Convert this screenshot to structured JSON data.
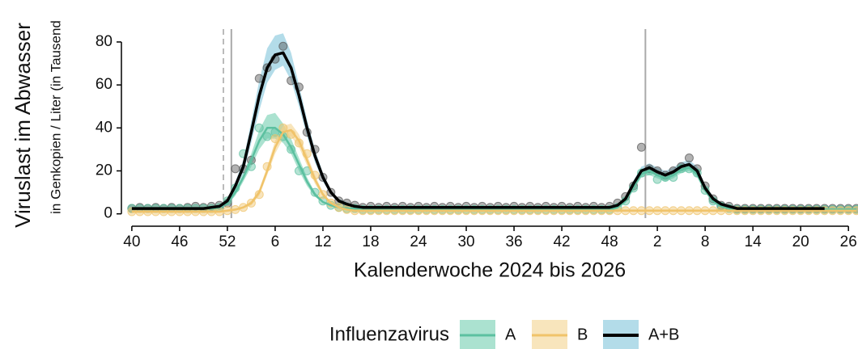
{
  "chart_data": {
    "type": "line",
    "y_label": "Viruslast im Abwasser",
    "y_sublabel": "in Genkopien / Liter (in Tausend",
    "x_label": "Kalenderwoche 2024 bis 2026",
    "legend_title": "Influenzavirus",
    "legend_position": "bottom",
    "xlim": [
      -0.8,
      91.2
    ],
    "ylim": [
      -5,
      86
    ],
    "yticks": [
      0,
      20,
      40,
      60,
      80
    ],
    "xticks": [
      {
        "value": 0,
        "label": "40"
      },
      {
        "value": 6,
        "label": "46"
      },
      {
        "value": 12,
        "label": "52"
      },
      {
        "value": 18,
        "label": "6"
      },
      {
        "value": 24,
        "label": "12"
      },
      {
        "value": 30,
        "label": "18"
      },
      {
        "value": 36,
        "label": "24"
      },
      {
        "value": 42,
        "label": "30"
      },
      {
        "value": 48,
        "label": "36"
      },
      {
        "value": 54,
        "label": "42"
      },
      {
        "value": 60,
        "label": "48"
      },
      {
        "value": 66,
        "label": "2"
      },
      {
        "value": 72,
        "label": "8"
      },
      {
        "value": 78,
        "label": "14"
      },
      {
        "value": 84,
        "label": "20"
      },
      {
        "value": 90,
        "label": "26"
      }
    ],
    "reference_lines": [
      12.5,
      64.5
    ],
    "dashed_line": 11.5,
    "x": [
      0,
      1,
      2,
      3,
      4,
      5,
      6,
      7,
      8,
      9,
      10,
      11,
      12,
      13,
      14,
      15,
      16,
      17,
      18,
      19,
      20,
      21,
      22,
      23,
      24,
      25,
      26,
      27,
      28,
      29,
      30,
      31,
      32,
      33,
      34,
      35,
      36,
      37,
      38,
      39,
      40,
      41,
      42,
      43,
      44,
      45,
      46,
      47,
      48,
      49,
      50,
      51,
      52,
      53,
      54,
      55,
      56,
      57,
      58,
      59,
      60,
      61,
      62,
      63,
      64,
      65,
      66,
      67,
      68,
      69,
      70,
      71,
      72,
      73,
      74,
      75,
      76,
      77,
      78,
      79,
      80,
      81,
      82,
      83,
      84,
      85,
      86,
      87,
      88,
      89,
      90,
      91
    ],
    "series": [
      {
        "name": "A",
        "color": "#5cc0a0",
        "band_color": "#8fd8c0",
        "point_color": "#5cc0a0",
        "values": [
          2.5,
          2.5,
          2.5,
          2.5,
          2.5,
          2.5,
          2.5,
          2.5,
          2.5,
          2.5,
          2.5,
          3,
          5,
          10,
          17,
          25,
          34,
          40,
          40,
          37,
          31,
          23,
          15,
          9,
          5.5,
          4,
          3,
          2.5,
          2.5,
          2,
          2,
          2,
          2,
          2,
          2,
          2,
          2,
          2,
          2,
          2,
          2,
          2,
          2,
          2,
          2,
          2,
          2,
          2,
          2,
          2,
          2,
          2,
          2,
          2,
          2,
          2,
          2,
          2,
          2,
          2,
          2,
          3,
          6,
          12.5,
          18.5,
          20,
          18,
          16.5,
          18,
          20.5,
          21.5,
          18.5,
          11,
          6,
          3.5,
          2.5,
          2,
          2,
          2,
          2,
          2,
          2,
          2,
          2,
          2,
          2,
          2,
          2,
          2,
          2,
          2,
          2
        ],
        "lower": [
          2,
          2,
          2,
          2,
          2,
          2,
          2,
          2,
          2,
          2,
          2,
          2.5,
          4,
          8.5,
          15,
          22,
          30,
          35,
          35,
          33,
          28,
          20,
          13,
          8,
          5,
          3.5,
          2.5,
          2,
          2,
          1.5,
          1.5,
          1.5,
          1.5,
          1.5,
          1.5,
          1.5,
          1.5,
          1.5,
          1.5,
          1.5,
          1.5,
          1.5,
          1.5,
          1.5,
          1.5,
          1.5,
          1.5,
          1.5,
          1.5,
          1.5,
          1.5,
          1.5,
          1.5,
          1.5,
          1.5,
          1.5,
          1.5,
          1.5,
          1.5,
          1.5,
          1.5,
          2.5,
          5,
          11,
          17,
          18,
          16.5,
          15,
          16.5,
          19,
          20,
          17,
          10,
          5,
          3,
          2,
          1.5,
          1.5,
          1.5,
          1.5,
          1.5,
          1.5,
          1.5,
          1.5,
          1.5,
          1.5,
          1.5,
          1.5,
          1.5,
          1.5,
          1.5,
          1.5
        ],
        "upper": [
          3,
          3,
          3,
          3,
          3,
          3,
          3,
          3,
          3,
          3,
          3,
          3.5,
          6,
          11.5,
          19,
          28,
          39,
          46,
          47,
          42,
          35,
          26,
          17,
          10,
          6,
          4.5,
          3.5,
          3,
          3,
          2.5,
          2.5,
          2.5,
          2.5,
          2.5,
          2.5,
          2.5,
          2.5,
          2.5,
          2.5,
          2.5,
          2.5,
          2.5,
          2.5,
          2.5,
          2.5,
          2.5,
          2.5,
          2.5,
          2.5,
          2.5,
          2.5,
          2.5,
          2.5,
          2.5,
          2.5,
          2.5,
          2.5,
          2.5,
          2.5,
          2.5,
          2.5,
          3.5,
          7,
          14,
          20,
          22,
          19.5,
          18,
          19.5,
          22,
          23,
          20,
          12,
          7,
          4,
          3,
          2.5,
          2.5,
          2.5,
          2.5,
          2.5,
          2.5,
          2.5,
          2.5,
          2.5,
          2.5,
          2.5,
          2.5,
          2.5,
          2.5,
          2.5,
          2.5
        ],
        "points": [
          2.5,
          2.5,
          2.5,
          2.5,
          2.5,
          2.5,
          2.5,
          2.5,
          2.5,
          2.5,
          2.5,
          3,
          6,
          12,
          28,
          22,
          40,
          36,
          38,
          36,
          30,
          20,
          20,
          10,
          6,
          4,
          3,
          2.5,
          2.5,
          2,
          2,
          2,
          2,
          2,
          2,
          2,
          2,
          2,
          2,
          2,
          2,
          2,
          2,
          2,
          2,
          2,
          2,
          2,
          2,
          2,
          2,
          2,
          2,
          2,
          2,
          2,
          2,
          2,
          2,
          2,
          2,
          3,
          6,
          12,
          19,
          20,
          16,
          17,
          17,
          21,
          21,
          19,
          11,
          6,
          3.5,
          2.5,
          2,
          2,
          2,
          2,
          2,
          2,
          2,
          2,
          2,
          2,
          2,
          2,
          2,
          2,
          2,
          2
        ]
      },
      {
        "name": "B",
        "color": "#f0c36a",
        "band_color": "#f5dca6",
        "point_color": "#f0c36a",
        "values": [
          1,
          1,
          1,
          1,
          1,
          1,
          1,
          1,
          1,
          1,
          1,
          1,
          1.5,
          2,
          3,
          5,
          10,
          20,
          31,
          38,
          39,
          34,
          25,
          16,
          9,
          5,
          3,
          2,
          1.5,
          1.5,
          1.5,
          1.5,
          1.5,
          1.5,
          1.5,
          1.5,
          1.5,
          1.5,
          1.5,
          1.5,
          1.5,
          1.5,
          1.5,
          1.5,
          1.5,
          1.5,
          1.5,
          1.5,
          1.5,
          1.5,
          1.5,
          1.5,
          1.5,
          1.5,
          1.5,
          1.5,
          1.5,
          1.5,
          1.5,
          1.5,
          1.5,
          1.5,
          1.5,
          1.5,
          1.5,
          1.5,
          1.5,
          1.5,
          1.5,
          1.5,
          1.5,
          1.5,
          1.5,
          1.5,
          1.5,
          1.5,
          1.5,
          1.5,
          1.5,
          1.5,
          1.5,
          1.5,
          1.5,
          1.5,
          1.5,
          1.5,
          1.5,
          1.5,
          1.5,
          1.5,
          1.5,
          1.5
        ],
        "lower": [
          0.5,
          0.5,
          0.5,
          0.5,
          0.5,
          0.5,
          0.5,
          0.5,
          0.5,
          0.5,
          0.5,
          0.5,
          1,
          1.5,
          2.5,
          4,
          8.5,
          18,
          28,
          35,
          36,
          31,
          22.5,
          14,
          8,
          4.5,
          2.5,
          1.5,
          1,
          1,
          1,
          1,
          1,
          1,
          1,
          1,
          1,
          1,
          1,
          1,
          1,
          1,
          1,
          1,
          1,
          1,
          1,
          1,
          1,
          1,
          1,
          1,
          1,
          1,
          1,
          1,
          1,
          1,
          1,
          1,
          1,
          1,
          1,
          1,
          1,
          1,
          1,
          1,
          1,
          1,
          1,
          1,
          1,
          1,
          1,
          1,
          1,
          1,
          1,
          1,
          1,
          1,
          1,
          1,
          1,
          1,
          1,
          1,
          1,
          1,
          1,
          1
        ],
        "upper": [
          1.5,
          1.5,
          1.5,
          1.5,
          1.5,
          1.5,
          1.5,
          1.5,
          1.5,
          1.5,
          1.5,
          1.5,
          2,
          2.5,
          3.5,
          6,
          11.5,
          22,
          34,
          41,
          42,
          37,
          27.5,
          18,
          10,
          5.5,
          3.5,
          2.5,
          2,
          2,
          2,
          2,
          2,
          2,
          2,
          2,
          2,
          2,
          2,
          2,
          2,
          2,
          2,
          2,
          2,
          2,
          2,
          2,
          2,
          2,
          2,
          2,
          2,
          2,
          2,
          2,
          2,
          2,
          2,
          2,
          2,
          2,
          2,
          2,
          2,
          2,
          2,
          2,
          2,
          2,
          2,
          2,
          2,
          2,
          2,
          2,
          2,
          2,
          2,
          2,
          2,
          2,
          2,
          2,
          2,
          2,
          2,
          2,
          2,
          2,
          2,
          2
        ],
        "points": [
          1,
          1,
          1,
          1,
          1,
          1,
          1,
          1,
          1,
          1,
          1,
          1,
          1.5,
          2,
          3,
          5,
          9,
          22,
          35,
          40,
          37,
          33,
          28,
          18,
          9,
          5,
          3,
          2,
          1.5,
          1.5,
          1.5,
          1.5,
          1.5,
          1.5,
          1.5,
          1.5,
          1.5,
          1.5,
          1.5,
          1.5,
          1.5,
          1.5,
          1.5,
          1.5,
          1.5,
          1.5,
          1.5,
          1.5,
          1.5,
          1.5,
          1.5,
          1.5,
          1.5,
          1.5,
          1.5,
          1.5,
          1.5,
          1.5,
          1.5,
          1.5,
          1.5,
          1.5,
          1.5,
          1.5,
          1.5,
          1.5,
          1.5,
          1.5,
          1.5,
          1.5,
          1.5,
          1.5,
          1.5,
          1.5,
          1.5,
          1.5,
          1.5,
          1.5,
          1.5,
          1.5,
          1.5,
          1.5,
          1.5,
          1.5,
          1.5,
          1.5,
          1.5,
          1.5,
          1.5,
          1.5,
          1.5,
          1.5
        ]
      },
      {
        "name": "A+B",
        "color": "#000000",
        "band_color": "#9ad0e2",
        "point_color": "#555555",
        "values": [
          2.5,
          2.5,
          2.5,
          2.5,
          2.5,
          2.5,
          2.5,
          2.5,
          2.5,
          2.5,
          3,
          3.5,
          6,
          13,
          22,
          38,
          55,
          68,
          74,
          75,
          68,
          55,
          40,
          27,
          17,
          10,
          6,
          4.5,
          3.5,
          3,
          3,
          3,
          3,
          3,
          3,
          3,
          3,
          3,
          3,
          3,
          3,
          3,
          3,
          3,
          3,
          3,
          3,
          3,
          3,
          3,
          3,
          3,
          3,
          3,
          3,
          3,
          3,
          3,
          3,
          3,
          3,
          4,
          7,
          14,
          20,
          21.5,
          19.5,
          18,
          19.5,
          22,
          23,
          20,
          12,
          7,
          4.5,
          3.5,
          2.5,
          2.5,
          2.5,
          2.5,
          2.5,
          2.5,
          2.5,
          2.5,
          2.5,
          2.5,
          2.5,
          2.5,
          null,
          null,
          null,
          null
        ],
        "lower": [
          2,
          2,
          2,
          2,
          2,
          2,
          2,
          2,
          2,
          2,
          2.5,
          3,
          5,
          11,
          19,
          33,
          48,
          61,
          67,
          69,
          62,
          50,
          36,
          24,
          15,
          9,
          5,
          4,
          3,
          2.5,
          2.5,
          2.5,
          2.5,
          2.5,
          2.5,
          2.5,
          2.5,
          2.5,
          2.5,
          2.5,
          2.5,
          2.5,
          2.5,
          2.5,
          2.5,
          2.5,
          2.5,
          2.5,
          2.5,
          2.5,
          2.5,
          2.5,
          2.5,
          2.5,
          2.5,
          2.5,
          2.5,
          2.5,
          2.5,
          2.5,
          2.5,
          3.5,
          6,
          12.5,
          18,
          19.5,
          17.5,
          16,
          17.5,
          20,
          21,
          18,
          10.5,
          6,
          4,
          3,
          2,
          2,
          2,
          2,
          2,
          2,
          2,
          2,
          2,
          2,
          2,
          2,
          null,
          null,
          null,
          null
        ],
        "upper": [
          3,
          3,
          3,
          3,
          3,
          3,
          3,
          3,
          3,
          3,
          3.5,
          4,
          7,
          15,
          25,
          43,
          62,
          77,
          83,
          84,
          75,
          60,
          44,
          30,
          19,
          11,
          7,
          5.5,
          4,
          3.5,
          3.5,
          3.5,
          3.5,
          3.5,
          3.5,
          3.5,
          3.5,
          3.5,
          3.5,
          3.5,
          3.5,
          3.5,
          3.5,
          3.5,
          3.5,
          3.5,
          3.5,
          3.5,
          3.5,
          3.5,
          3.5,
          3.5,
          3.5,
          3.5,
          3.5,
          3.5,
          3.5,
          3.5,
          3.5,
          3.5,
          3.5,
          4.5,
          8,
          15.5,
          22,
          23.5,
          21.5,
          20,
          21.5,
          24,
          25,
          22,
          13.5,
          8,
          5,
          4,
          3,
          3,
          3,
          3,
          3,
          3,
          3,
          3,
          3,
          3,
          3,
          3,
          null,
          null,
          null,
          null
        ],
        "points": [
          2.5,
          3,
          2.5,
          3,
          2.5,
          3,
          2.5,
          3,
          3.5,
          3,
          3.5,
          4,
          5,
          21,
          21,
          25,
          63,
          68,
          72,
          78,
          62,
          59,
          38,
          30,
          17,
          10,
          6,
          5,
          4,
          3,
          3.5,
          3,
          3.5,
          3,
          3.5,
          3,
          3.5,
          3,
          3.5,
          3,
          3.5,
          3,
          3.5,
          3,
          3.5,
          3,
          3.5,
          3,
          3.5,
          3,
          3.5,
          3,
          3.5,
          3,
          3.5,
          3,
          3.5,
          3,
          3.5,
          3,
          3.5,
          5,
          8,
          13,
          31,
          21,
          20,
          18,
          20,
          22,
          26,
          21,
          13,
          7,
          4,
          3.5,
          2.5,
          2.5,
          2.5,
          2.5,
          2.5,
          2.5,
          2.5,
          2.5,
          2.5,
          2.5,
          2.5,
          2.5,
          2.5,
          2.5,
          2.5,
          2.5
        ]
      }
    ]
  }
}
